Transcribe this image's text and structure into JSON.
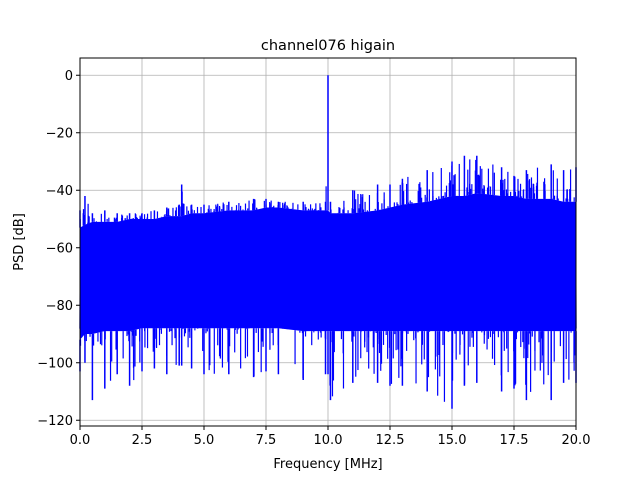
{
  "chart_data": {
    "type": "line",
    "title": "channel076 higain",
    "xlabel": "Frequency [MHz]",
    "ylabel": "PSD [dB]",
    "xlim": [
      0,
      20
    ],
    "ylim": [
      -122,
      6
    ],
    "grid": true,
    "xticks": [
      0,
      2.5,
      5,
      7.5,
      10,
      12.5,
      15,
      17.5,
      20
    ],
    "xtick_labels": [
      "0.0",
      "2.5",
      "5.0",
      "7.5",
      "10.0",
      "12.5",
      "15.0",
      "17.5",
      "20.0"
    ],
    "yticks": [
      0,
      -20,
      -40,
      -60,
      -80,
      -100,
      -120
    ],
    "ytick_labels": [
      "0",
      "−20",
      "−40",
      "−60",
      "−80",
      "−100",
      "−120"
    ],
    "series": [
      {
        "color": "#0000ff",
        "envelope": {
          "x": [
            0,
            0.2,
            0.5,
            1,
            1.5,
            2,
            2.5,
            3,
            3.5,
            4,
            4.1,
            4.5,
            5,
            6,
            7,
            7.5,
            8,
            9,
            9.9,
            10,
            10.1,
            11,
            12,
            12.5,
            13,
            14,
            15,
            15.5,
            16,
            17,
            17.5,
            18,
            19,
            19.5,
            20
          ],
          "upper": [
            -47,
            -42,
            -48,
            -47,
            -48,
            -48,
            -48,
            -47,
            -46,
            -45,
            -38,
            -45,
            -45,
            -44,
            -43,
            -43,
            -44,
            -44,
            -44,
            0,
            -44,
            -40,
            -38,
            -38,
            -36,
            -33,
            -30,
            -28,
            -28,
            -32,
            -35,
            -33,
            -31,
            -33,
            -32
          ],
          "band_upper": [
            -53,
            -52,
            -51,
            -51,
            -51,
            -50,
            -50,
            -50,
            -49,
            -49,
            -49,
            -48,
            -48,
            -47,
            -47,
            -46,
            -46,
            -47,
            -47,
            -47,
            -48,
            -48,
            -47,
            -46,
            -45,
            -44,
            -42,
            -42,
            -41,
            -42,
            -42,
            -43,
            -43,
            -44,
            -44
          ],
          "band_lower": [
            -92,
            -90,
            -90,
            -89,
            -89,
            -89,
            -88,
            -88,
            -88,
            -88,
            -88,
            -88,
            -88,
            -88,
            -88,
            -88,
            -88,
            -89,
            -89,
            -89,
            -89,
            -89,
            -89,
            -89,
            -89,
            -89,
            -89,
            -89,
            -89,
            -89,
            -89,
            -89,
            -89,
            -89,
            -89
          ],
          "lower": [
            -103,
            -100,
            -113,
            -109,
            -104,
            -108,
            -103,
            -102,
            -104,
            -101,
            -101,
            -102,
            -104,
            -104,
            -105,
            -103,
            -104,
            -106,
            -104,
            -104,
            -113,
            -107,
            -107,
            -108,
            -108,
            -110,
            -116,
            -108,
            -107,
            -110,
            -109,
            -113,
            -113,
            -107,
            -107
          ]
        }
      }
    ]
  }
}
